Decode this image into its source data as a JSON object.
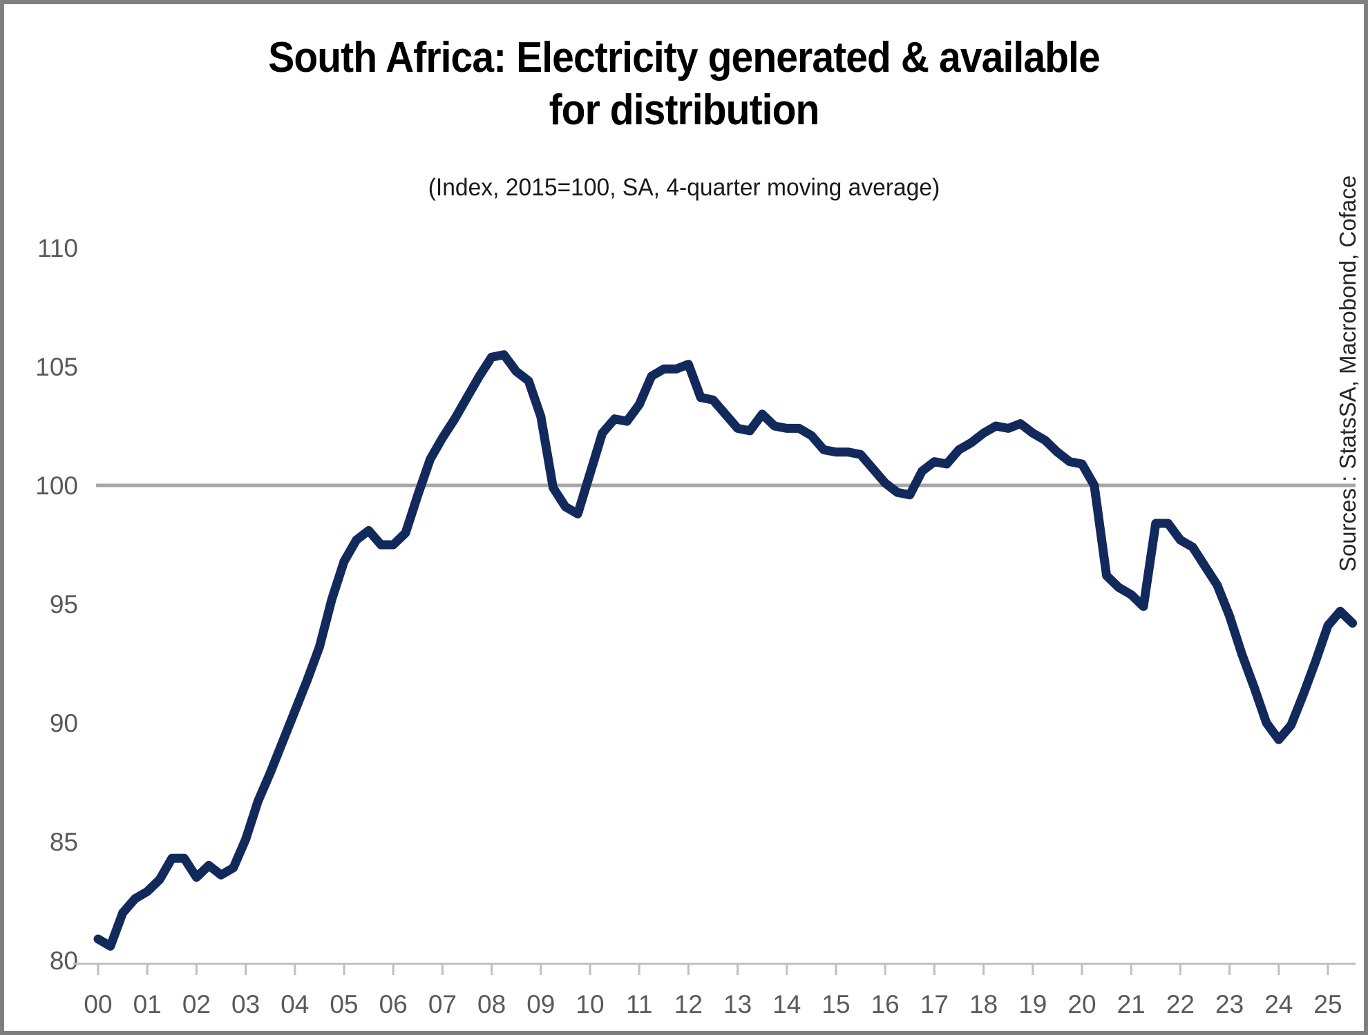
{
  "page": {
    "title": "South Africa: Electricity generated & available\nfor distribution",
    "subtitle": "(Index, 2015=100, SA, 4-quarter moving average)",
    "source_note": "Sources : StatsSA, Macrobond, Coface"
  },
  "chart_data": {
    "type": "line",
    "title": "South Africa: Electricity generated & available for distribution",
    "subtitle": "(Index, 2015=100, SA, 4-quarter moving average)",
    "xlabel": "",
    "ylabel": "",
    "xlim": [
      2000,
      2025.75
    ],
    "ylim": [
      80,
      110
    ],
    "grid": false,
    "legend_position": "none",
    "reference_line": {
      "value": 100,
      "color": "#a6a6a6"
    },
    "colors": {
      "line": "#12295B",
      "reference": "#a6a6a6",
      "axis": "#bfbfbf",
      "tick_label": "#595959"
    },
    "y_ticks": {
      "values": [
        110,
        105,
        100,
        95,
        90,
        85,
        80
      ],
      "labels": [
        "110",
        "105",
        "100",
        "95",
        "90",
        "85",
        "80"
      ]
    },
    "x_ticks": {
      "values": [
        2000,
        2001,
        2002,
        2003,
        2004,
        2005,
        2006,
        2007,
        2008,
        2009,
        2010,
        2011,
        2012,
        2013,
        2014,
        2015,
        2016,
        2017,
        2018,
        2019,
        2020,
        2021,
        2022,
        2023,
        2024,
        2025
      ],
      "labels": [
        "00",
        "01",
        "02",
        "03",
        "04",
        "05",
        "06",
        "07",
        "08",
        "09",
        "10",
        "11",
        "12",
        "13",
        "14",
        "15",
        "16",
        "17",
        "18",
        "19",
        "20",
        "21",
        "22",
        "23",
        "24",
        "25"
      ]
    },
    "series": [
      {
        "name": "Electricity generated & available for distribution (index, 2015=100, 4-quarter moving average)",
        "x": [
          2000.0,
          2000.25,
          2000.5,
          2000.75,
          2001.0,
          2001.25,
          2001.5,
          2001.75,
          2002.0,
          2002.25,
          2002.5,
          2002.75,
          2003.0,
          2003.25,
          2003.5,
          2003.75,
          2004.0,
          2004.25,
          2004.5,
          2004.75,
          2005.0,
          2005.25,
          2005.5,
          2005.75,
          2006.0,
          2006.25,
          2006.5,
          2006.75,
          2007.0,
          2007.25,
          2007.5,
          2007.75,
          2008.0,
          2008.25,
          2008.5,
          2008.75,
          2009.0,
          2009.25,
          2009.5,
          2009.75,
          2010.0,
          2010.25,
          2010.5,
          2010.75,
          2011.0,
          2011.25,
          2011.5,
          2011.75,
          2012.0,
          2012.25,
          2012.5,
          2012.75,
          2013.0,
          2013.25,
          2013.5,
          2013.75,
          2014.0,
          2014.25,
          2014.5,
          2014.75,
          2015.0,
          2015.25,
          2015.5,
          2015.75,
          2016.0,
          2016.25,
          2016.5,
          2016.75,
          2017.0,
          2017.25,
          2017.5,
          2017.75,
          2018.0,
          2018.25,
          2018.5,
          2018.75,
          2019.0,
          2019.25,
          2019.5,
          2019.75,
          2020.0,
          2020.25,
          2020.5,
          2020.75,
          2021.0,
          2021.25,
          2021.5,
          2021.75,
          2022.0,
          2022.25,
          2022.5,
          2022.75,
          2023.0,
          2023.25,
          2023.5,
          2023.75,
          2024.0,
          2024.25,
          2024.5,
          2024.75,
          2025.0,
          2025.25,
          2025.5
        ],
        "values": [
          80.9,
          80.6,
          82.0,
          82.6,
          82.9,
          83.4,
          84.3,
          84.3,
          83.5,
          84.0,
          83.6,
          83.9,
          85.1,
          86.7,
          87.9,
          89.2,
          90.5,
          91.8,
          93.2,
          95.2,
          96.8,
          97.7,
          98.1,
          97.5,
          97.5,
          98.0,
          99.6,
          101.1,
          102.0,
          102.8,
          103.7,
          104.6,
          105.4,
          105.5,
          104.8,
          104.4,
          102.9,
          99.9,
          99.1,
          98.8,
          100.5,
          102.2,
          102.8,
          102.7,
          103.4,
          104.6,
          104.9,
          104.9,
          105.1,
          103.7,
          103.6,
          103.0,
          102.4,
          102.3,
          103.0,
          102.5,
          102.4,
          102.4,
          102.1,
          101.5,
          101.4,
          101.4,
          101.3,
          100.7,
          100.1,
          99.7,
          99.6,
          100.6,
          101.0,
          100.9,
          101.5,
          101.8,
          102.2,
          102.5,
          102.4,
          102.6,
          102.2,
          101.9,
          101.4,
          101.0,
          100.9,
          100.0,
          96.2,
          95.7,
          95.4,
          94.9,
          98.4,
          98.4,
          97.7,
          97.4,
          96.6,
          95.8,
          94.5,
          92.9,
          91.5,
          90.0,
          89.3,
          89.9,
          91.2,
          92.6,
          94.1,
          94.7,
          94.2
        ]
      }
    ]
  }
}
